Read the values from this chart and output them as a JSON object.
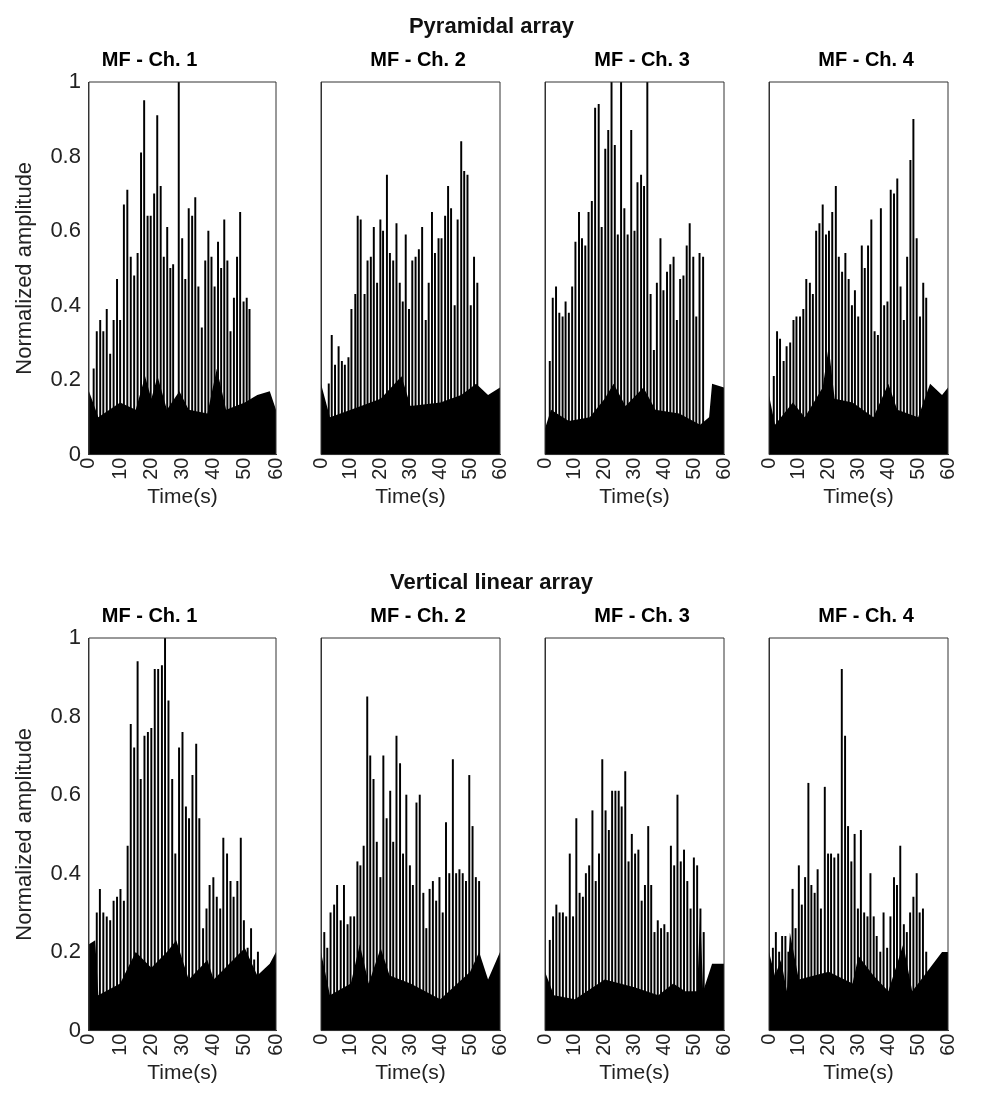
{
  "chart_data": [
    {
      "type": "bar",
      "title": "MF - Ch. 1",
      "xlabel": "Time(s)",
      "ylabel": "Normalized amplitude",
      "annotations": [
        "Pyramidal array"
      ],
      "xlim": [
        0,
        60
      ],
      "xticks": [
        0,
        10,
        20,
        30,
        40,
        50,
        60
      ],
      "ylim": [
        0,
        1
      ],
      "yticks": [
        0,
        0.2,
        0.4,
        0.6,
        0.8,
        1
      ],
      "series": [
        {
          "type": "area",
          "color": "#000000",
          "x": [
            0,
            3,
            10,
            15,
            18,
            20,
            22,
            25,
            29,
            32,
            38,
            41,
            44,
            50,
            54,
            58,
            60
          ],
          "values": [
            0.17,
            0.1,
            0.14,
            0.12,
            0.21,
            0.15,
            0.21,
            0.12,
            0.17,
            0.12,
            0.11,
            0.23,
            0.12,
            0.14,
            0.16,
            0.17,
            0.12
          ]
        },
        {
          "color": "#000000",
          "x": [
            1.5,
            2.5,
            3.6,
            4.6,
            5.7,
            6.8,
            7.9,
            9,
            10,
            11.2,
            12.3,
            13.4,
            14.5,
            15.6,
            16.7,
            17.7,
            18.8,
            19.8,
            20.9,
            21.9,
            23,
            24,
            25.1,
            26.1,
            27,
            28.8,
            29.9,
            30.9,
            32,
            33.1,
            34.1,
            35.1,
            36.2,
            37.3,
            38.3,
            39.3,
            40.3,
            41.4,
            42.4,
            43.4,
            44.4,
            45.4,
            46.5,
            47.5,
            48.5,
            49.6,
            50.6,
            51.5
          ],
          "values": [
            0.23,
            0.33,
            0.36,
            0.33,
            0.39,
            0.27,
            0.36,
            0.47,
            0.36,
            0.67,
            0.71,
            0.53,
            0.48,
            0.54,
            0.81,
            0.95,
            0.64,
            0.64,
            0.7,
            0.91,
            0.72,
            0.53,
            0.61,
            0.5,
            0.51,
            1,
            0.58,
            0.47,
            0.66,
            0.64,
            0.69,
            0.45,
            0.34,
            0.52,
            0.6,
            0.53,
            0.45,
            0.57,
            0.5,
            0.63,
            0.52,
            0.33,
            0.42,
            0.53,
            0.65,
            0.41,
            0.42,
            0.39
          ]
        }
      ]
    },
    {
      "type": "bar",
      "title": "MF - Ch. 2",
      "xlabel": "Time(s)",
      "tick_labels": "x",
      "xlim": [
        0,
        60
      ],
      "xticks": [
        0,
        10,
        20,
        30,
        40,
        50,
        60
      ],
      "ylim": [
        0,
        1
      ],
      "yticks": [
        0,
        0.2,
        0.4,
        0.6,
        0.8,
        1
      ],
      "series": [
        {
          "type": "area",
          "color": "#000000",
          "x": [
            0,
            3,
            10,
            20,
            27,
            30,
            40,
            47,
            52,
            56,
            60
          ],
          "values": [
            0.19,
            0.1,
            0.12,
            0.15,
            0.21,
            0.13,
            0.14,
            0.16,
            0.19,
            0.16,
            0.18
          ]
        },
        {
          "color": "#000000",
          "x": [
            2.6,
            3.6,
            4.7,
            5.9,
            7,
            8,
            9.2,
            10.2,
            11.5,
            12.3,
            13.3,
            14.6,
            15.6,
            16.7,
            17.7,
            18.8,
            19.9,
            20.8,
            22.1,
            23.1,
            24.2,
            25.3,
            26.4,
            27.4,
            28.4,
            29.5,
            30.6,
            31.7,
            32.8,
            33.9,
            35.1,
            36.1,
            37.2,
            38.2,
            39.4,
            40.4,
            41.6,
            42.6,
            43.6,
            44.8,
            45.8,
            47,
            48,
            49.1,
            50.2,
            51.3,
            52.4
          ],
          "values": [
            0.19,
            0.32,
            0.24,
            0.29,
            0.25,
            0.24,
            0.26,
            0.39,
            0.43,
            0.64,
            0.63,
            0.43,
            0.52,
            0.53,
            0.61,
            0.46,
            0.63,
            0.6,
            0.75,
            0.54,
            0.52,
            0.62,
            0.46,
            0.41,
            0.59,
            0.39,
            0.52,
            0.53,
            0.55,
            0.61,
            0.36,
            0.46,
            0.65,
            0.54,
            0.58,
            0.58,
            0.64,
            0.72,
            0.66,
            0.4,
            0.63,
            0.84,
            0.76,
            0.75,
            0.4,
            0.53,
            0.46
          ]
        }
      ]
    },
    {
      "type": "bar",
      "title": "MF - Ch. 3",
      "xlabel": "Time(s)",
      "tick_labels": "x",
      "xlim": [
        0,
        60
      ],
      "xticks": [
        0,
        10,
        20,
        30,
        40,
        50,
        60
      ],
      "ylim": [
        0,
        1
      ],
      "yticks": [
        0,
        0.2,
        0.4,
        0.6,
        0.8,
        1
      ],
      "series": [
        {
          "type": "area",
          "color": "#000000",
          "x": [
            0,
            2,
            8,
            15,
            20,
            23,
            27,
            33,
            37,
            45,
            52,
            55,
            56,
            60
          ],
          "values": [
            0.07,
            0.12,
            0.09,
            0.1,
            0.15,
            0.19,
            0.13,
            0.18,
            0.12,
            0.11,
            0.08,
            0.1,
            0.19,
            0.18
          ]
        },
        {
          "color": "#000000",
          "x": [
            1.6,
            2.6,
            3.7,
            4.8,
            5.9,
            6.9,
            8,
            9.1,
            10.2,
            11.4,
            12.4,
            13.5,
            14.6,
            15.7,
            16.8,
            18,
            19,
            20.2,
            21.2,
            22.3,
            23.4,
            24.4,
            25.5,
            26.6,
            27.7,
            28.9,
            30,
            31,
            32.2,
            33.2,
            34.3,
            35.4,
            36.5,
            37.5,
            38.7,
            39.7,
            40.9,
            42,
            43.1,
            44.2,
            45.3,
            46.4,
            47.5,
            48.5,
            49.7,
            50.7,
            51.8,
            53
          ],
          "values": [
            0.25,
            0.42,
            0.45,
            0.38,
            0.37,
            0.41,
            0.38,
            0.45,
            0.57,
            0.65,
            0.58,
            0.56,
            0.65,
            0.68,
            0.93,
            0.94,
            0.61,
            0.82,
            0.87,
            1,
            0.83,
            0.59,
            1,
            0.66,
            0.59,
            0.87,
            0.6,
            0.73,
            0.75,
            0.72,
            1,
            0.43,
            0.28,
            0.46,
            0.58,
            0.44,
            0.49,
            0.51,
            0.53,
            0.36,
            0.47,
            0.48,
            0.56,
            0.62,
            0.53,
            0.37,
            0.54,
            0.53
          ]
        }
      ]
    },
    {
      "type": "bar",
      "title": "MF - Ch. 4",
      "xlabel": "Time(s)",
      "tick_labels": "x",
      "xlim": [
        0,
        60
      ],
      "xticks": [
        0,
        10,
        20,
        30,
        40,
        50,
        60
      ],
      "ylim": [
        0,
        1
      ],
      "yticks": [
        0,
        0.2,
        0.4,
        0.6,
        0.8,
        1
      ],
      "series": [
        {
          "type": "area",
          "color": "#000000",
          "x": [
            0,
            2,
            8,
            12,
            18,
            20,
            22,
            28,
            35,
            40,
            43,
            50,
            54,
            58,
            60
          ],
          "values": [
            0.16,
            0.08,
            0.14,
            0.1,
            0.18,
            0.29,
            0.15,
            0.14,
            0.1,
            0.19,
            0.12,
            0.1,
            0.19,
            0.16,
            0.18
          ]
        },
        {
          "color": "#000000",
          "x": [
            1.6,
            2.7,
            3.7,
            4.9,
            5.9,
            7.1,
            8.2,
            9.2,
            10.4,
            11.5,
            12.5,
            13.7,
            14.7,
            15.8,
            16.9,
            18,
            19.1,
            20.1,
            21.2,
            22.4,
            23.4,
            24.5,
            25.6,
            26.7,
            27.8,
            28.8,
            29.9,
            31.1,
            32.1,
            33.2,
            34.3,
            35.4,
            36.5,
            37.5,
            38.6,
            39.7,
            40.8,
            41.9,
            43,
            44.1,
            45.2,
            46.3,
            47.4,
            48.4,
            49.5,
            50.6,
            51.7,
            52.7
          ],
          "values": [
            0.21,
            0.33,
            0.31,
            0.25,
            0.29,
            0.3,
            0.36,
            0.37,
            0.37,
            0.39,
            0.47,
            0.46,
            0.43,
            0.6,
            0.62,
            0.67,
            0.59,
            0.6,
            0.65,
            0.72,
            0.53,
            0.49,
            0.54,
            0.47,
            0.4,
            0.44,
            0.37,
            0.56,
            0.5,
            0.56,
            0.63,
            0.33,
            0.32,
            0.66,
            0.4,
            0.41,
            0.71,
            0.7,
            0.74,
            0.45,
            0.36,
            0.53,
            0.79,
            0.9,
            0.58,
            0.37,
            0.46,
            0.42
          ]
        }
      ]
    },
    {
      "type": "bar",
      "title": "MF - Ch. 1",
      "xlabel": "Time(s)",
      "ylabel": "Normalized amplitude",
      "annotations": [
        "Vertical linear array"
      ],
      "xlim": [
        0,
        60
      ],
      "xticks": [
        0,
        10,
        20,
        30,
        40,
        50,
        60
      ],
      "ylim": [
        0,
        1
      ],
      "yticks": [
        0,
        0.2,
        0.4,
        0.6,
        0.8,
        1
      ],
      "series": [
        {
          "type": "area",
          "color": "#000000",
          "x": [
            0,
            2,
            3,
            10,
            15,
            20,
            25,
            28,
            32,
            38,
            40,
            50,
            54,
            58,
            60
          ],
          "values": [
            0.22,
            0.23,
            0.09,
            0.12,
            0.2,
            0.16,
            0.2,
            0.23,
            0.13,
            0.18,
            0.13,
            0.21,
            0.14,
            0.17,
            0.2
          ]
        },
        {
          "color": "#000000",
          "x": [
            2.5,
            3.5,
            4.6,
            5.7,
            6.8,
            7.9,
            9,
            10.1,
            11.2,
            12.4,
            13.4,
            14.5,
            15.6,
            16.6,
            17.8,
            18.9,
            20,
            21.1,
            22.2,
            23.4,
            24.4,
            25.5,
            26.7,
            27.7,
            28.9,
            30,
            31.1,
            32.1,
            33.2,
            34.4,
            35.4,
            36.6,
            37.7,
            38.7,
            39.9,
            41,
            42.1,
            43.1,
            44.3,
            45.4,
            46.4,
            47.6,
            48.7,
            49.7,
            50.9,
            52,
            53,
            54.2
          ],
          "values": [
            0.3,
            0.36,
            0.3,
            0.29,
            0.28,
            0.33,
            0.34,
            0.36,
            0.33,
            0.47,
            0.78,
            0.72,
            0.94,
            0.64,
            0.75,
            0.76,
            0.77,
            0.92,
            0.92,
            0.93,
            1,
            0.84,
            0.64,
            0.45,
            0.72,
            0.76,
            0.57,
            0.54,
            0.65,
            0.73,
            0.54,
            0.26,
            0.31,
            0.37,
            0.39,
            0.34,
            0.31,
            0.49,
            0.45,
            0.38,
            0.34,
            0.38,
            0.49,
            0.28,
            0.21,
            0.26,
            0.18,
            0.2
          ]
        }
      ]
    },
    {
      "type": "bar",
      "title": "MF - Ch. 2",
      "xlabel": "Time(s)",
      "tick_labels": "x",
      "xlim": [
        0,
        60
      ],
      "xticks": [
        0,
        10,
        20,
        30,
        40,
        50,
        60
      ],
      "ylim": [
        0,
        1
      ],
      "yticks": [
        0,
        0.2,
        0.4,
        0.6,
        0.8,
        1
      ],
      "series": [
        {
          "type": "area",
          "color": "#000000",
          "x": [
            0,
            3,
            10,
            13,
            16,
            20,
            23,
            30,
            40,
            50,
            53,
            56,
            60
          ],
          "values": [
            0.2,
            0.09,
            0.12,
            0.22,
            0.12,
            0.21,
            0.14,
            0.12,
            0.08,
            0.15,
            0.2,
            0.13,
            0.2
          ]
        },
        {
          "color": "#000000",
          "x": [
            1.1,
            2.1,
            3.2,
            4.4,
            5.4,
            6.6,
            7.7,
            8.9,
            9.9,
            11.1,
            12.2,
            13.2,
            14.3,
            15.5,
            16.5,
            17.6,
            18.7,
            19.9,
            20.9,
            22,
            23.2,
            24.2,
            25.3,
            26.5,
            27.5,
            28.6,
            29.8,
            30.8,
            32,
            33.1,
            34.3,
            35.3,
            36.4,
            37.5,
            38.6,
            39.7,
            40.8,
            41.9,
            43,
            44.2,
            45.3,
            46.4,
            47.5,
            48.6,
            49.7,
            50.8,
            51.9,
            53
          ],
          "values": [
            0.25,
            0.21,
            0.3,
            0.32,
            0.37,
            0.28,
            0.37,
            0.27,
            0.29,
            0.29,
            0.43,
            0.42,
            0.47,
            0.85,
            0.7,
            0.64,
            0.48,
            0.39,
            0.7,
            0.54,
            0.61,
            0.48,
            0.75,
            0.68,
            0.45,
            0.6,
            0.42,
            0.37,
            0.58,
            0.6,
            0.35,
            0.26,
            0.36,
            0.38,
            0.33,
            0.39,
            0.3,
            0.53,
            0.4,
            0.69,
            0.4,
            0.41,
            0.4,
            0.38,
            0.65,
            0.52,
            0.39,
            0.38
          ]
        }
      ]
    },
    {
      "type": "bar",
      "title": "MF - Ch. 3",
      "xlabel": "Time(s)",
      "tick_labels": "x",
      "xlim": [
        0,
        60
      ],
      "xticks": [
        0,
        10,
        20,
        30,
        40,
        50,
        60
      ],
      "ylim": [
        0,
        1
      ],
      "yticks": [
        0,
        0.2,
        0.4,
        0.6,
        0.8,
        1
      ],
      "series": [
        {
          "type": "area",
          "color": "#000000",
          "x": [
            0,
            3,
            10,
            20,
            30,
            38,
            43,
            47,
            51,
            52,
            53,
            56,
            60
          ],
          "values": [
            0.15,
            0.09,
            0.08,
            0.13,
            0.11,
            0.09,
            0.12,
            0.1,
            0.1,
            0.3,
            0.1,
            0.17,
            0.17
          ]
        },
        {
          "color": "#000000",
          "x": [
            1.6,
            2.7,
            3.8,
            4.9,
            6,
            7.1,
            8.3,
            9.4,
            10.5,
            11.6,
            12.7,
            13.7,
            14.8,
            15.9,
            17,
            18.1,
            19.2,
            20.3,
            21.4,
            22.5,
            23.6,
            24.7,
            25.7,
            26.9,
            28,
            29.1,
            30.2,
            31.3,
            32.4,
            33.5,
            34.6,
            35.6,
            36.7,
            37.8,
            38.9,
            40,
            41.1,
            42.2,
            43.3,
            44.4,
            45.5,
            46.6,
            47.7,
            48.8,
            49.9,
            51,
            52.1,
            53.2
          ],
          "values": [
            0.23,
            0.29,
            0.32,
            0.3,
            0.3,
            0.29,
            0.45,
            0.29,
            0.54,
            0.35,
            0.34,
            0.4,
            0.42,
            0.56,
            0.38,
            0.45,
            0.69,
            0.56,
            0.51,
            0.61,
            0.61,
            0.61,
            0.57,
            0.66,
            0.43,
            0.5,
            0.45,
            0.46,
            0.33,
            0.37,
            0.52,
            0.37,
            0.25,
            0.28,
            0.26,
            0.27,
            0.25,
            0.47,
            0.42,
            0.6,
            0.43,
            0.46,
            0.38,
            0.31,
            0.44,
            0.42,
            0.31,
            0.25
          ]
        }
      ]
    },
    {
      "type": "bar",
      "title": "MF - Ch. 4",
      "xlabel": "Time(s)",
      "tick_labels": "x",
      "xlim": [
        0,
        60
      ],
      "xticks": [
        0,
        10,
        20,
        30,
        40,
        50,
        60
      ],
      "ylim": [
        0,
        1
      ],
      "yticks": [
        0,
        0.2,
        0.4,
        0.6,
        0.8,
        1
      ],
      "series": [
        {
          "type": "area",
          "color": "#000000",
          "x": [
            0,
            2,
            4,
            6,
            7,
            10,
            20,
            28,
            30,
            35,
            40,
            45,
            48,
            50,
            54,
            58,
            60
          ],
          "values": [
            0.2,
            0.14,
            0.18,
            0.1,
            0.25,
            0.13,
            0.15,
            0.12,
            0.19,
            0.14,
            0.1,
            0.22,
            0.1,
            0.12,
            0.16,
            0.2,
            0.2
          ]
        },
        {
          "color": "#000000",
          "x": [
            1.3,
            2.3,
            3.4,
            4.4,
            5.5,
            6.5,
            7.9,
            8.9,
            10,
            11,
            12.1,
            13.2,
            14.2,
            15.3,
            16.3,
            17.4,
            18.7,
            19.8,
            20.8,
            21.9,
            23.2,
            24.4,
            25.5,
            26.5,
            27.6,
            28.7,
            29.8,
            30.8,
            31.9,
            33,
            34,
            35.1,
            36.1,
            37.3,
            38.4,
            39.6,
            40.7,
            41.9,
            42.9,
            44,
            45.2,
            46.2,
            47.3,
            48.4,
            49.5,
            50.5,
            51.6,
            52.7
          ],
          "values": [
            0.21,
            0.25,
            0.2,
            0.24,
            0.24,
            0.2,
            0.36,
            0.26,
            0.42,
            0.32,
            0.39,
            0.63,
            0.37,
            0.35,
            0.41,
            0.31,
            0.62,
            0.45,
            0.45,
            0.44,
            0.45,
            0.92,
            0.75,
            0.52,
            0.43,
            0.5,
            0.31,
            0.51,
            0.3,
            0.29,
            0.4,
            0.29,
            0.24,
            0.2,
            0.3,
            0.21,
            0.29,
            0.39,
            0.37,
            0.47,
            0.27,
            0.25,
            0.3,
            0.34,
            0.4,
            0.3,
            0.31,
            0.2
          ]
        }
      ]
    }
  ]
}
